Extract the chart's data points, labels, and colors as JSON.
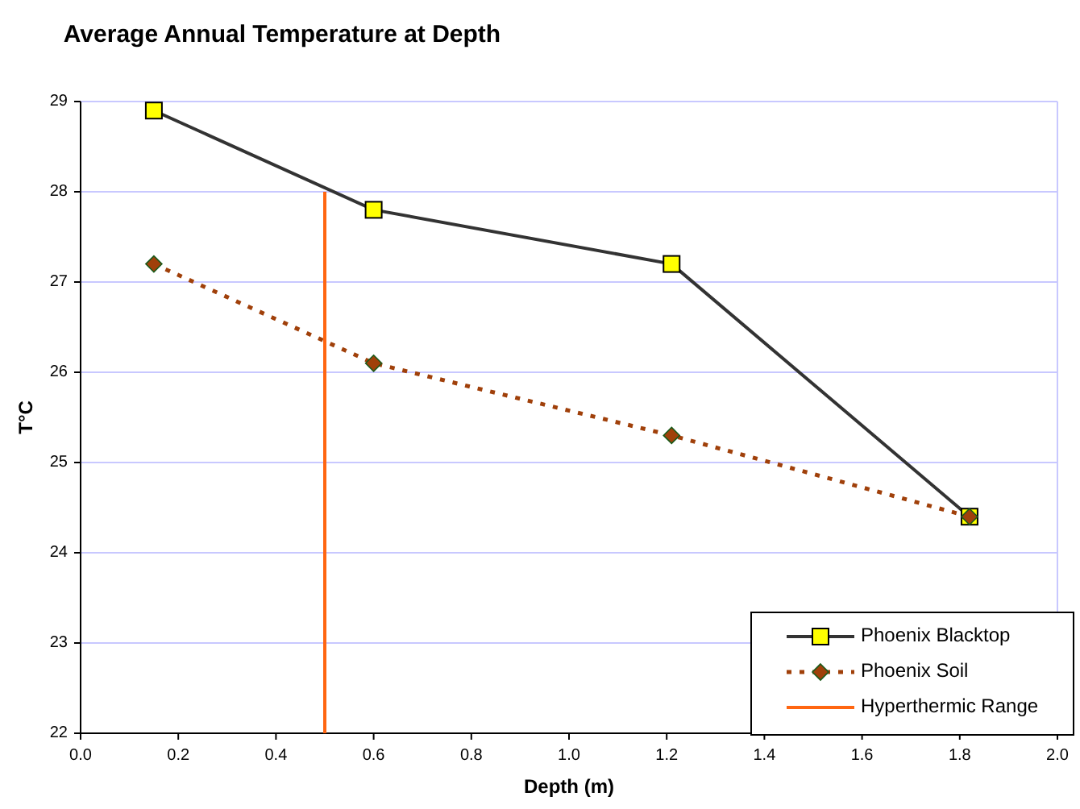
{
  "chart_data": {
    "type": "line",
    "title": "Average Annual Temperature at Depth",
    "xlabel": "Depth (m)",
    "ylabel": "T°C",
    "x": [
      0.15,
      0.6,
      1.21,
      1.82
    ],
    "series": [
      {
        "name": "Phoenix Blacktop",
        "color": "#333333",
        "values": [
          28.9,
          27.8,
          27.2,
          24.4
        ],
        "marker": "square",
        "line_style": "solid"
      },
      {
        "name": "Phoenix Soil",
        "color": "#a0400a",
        "values": [
          27.2,
          26.1,
          25.3,
          24.4
        ],
        "marker": "diamond",
        "line_style": "dotted"
      },
      {
        "name": "Hyperthermic Range",
        "color": "#ff6611",
        "x": [
          0.5,
          0.5
        ],
        "values": [
          22,
          28
        ],
        "marker": "none",
        "line_style": "solid"
      }
    ],
    "xlim": [
      0,
      2
    ],
    "xticks": [
      {
        "value": 0,
        "label": "0.0"
      },
      0.2,
      0.4,
      0.6,
      0.8,
      {
        "value": 1,
        "label": "1.0"
      },
      1.2,
      1.4,
      1.6,
      1.8,
      {
        "value": 2,
        "label": "2.0"
      }
    ],
    "ylim": [
      22,
      29
    ],
    "yticks": [
      22,
      23,
      24,
      25,
      26,
      27,
      28,
      29
    ],
    "grid": "y",
    "legend": "bottom right"
  }
}
